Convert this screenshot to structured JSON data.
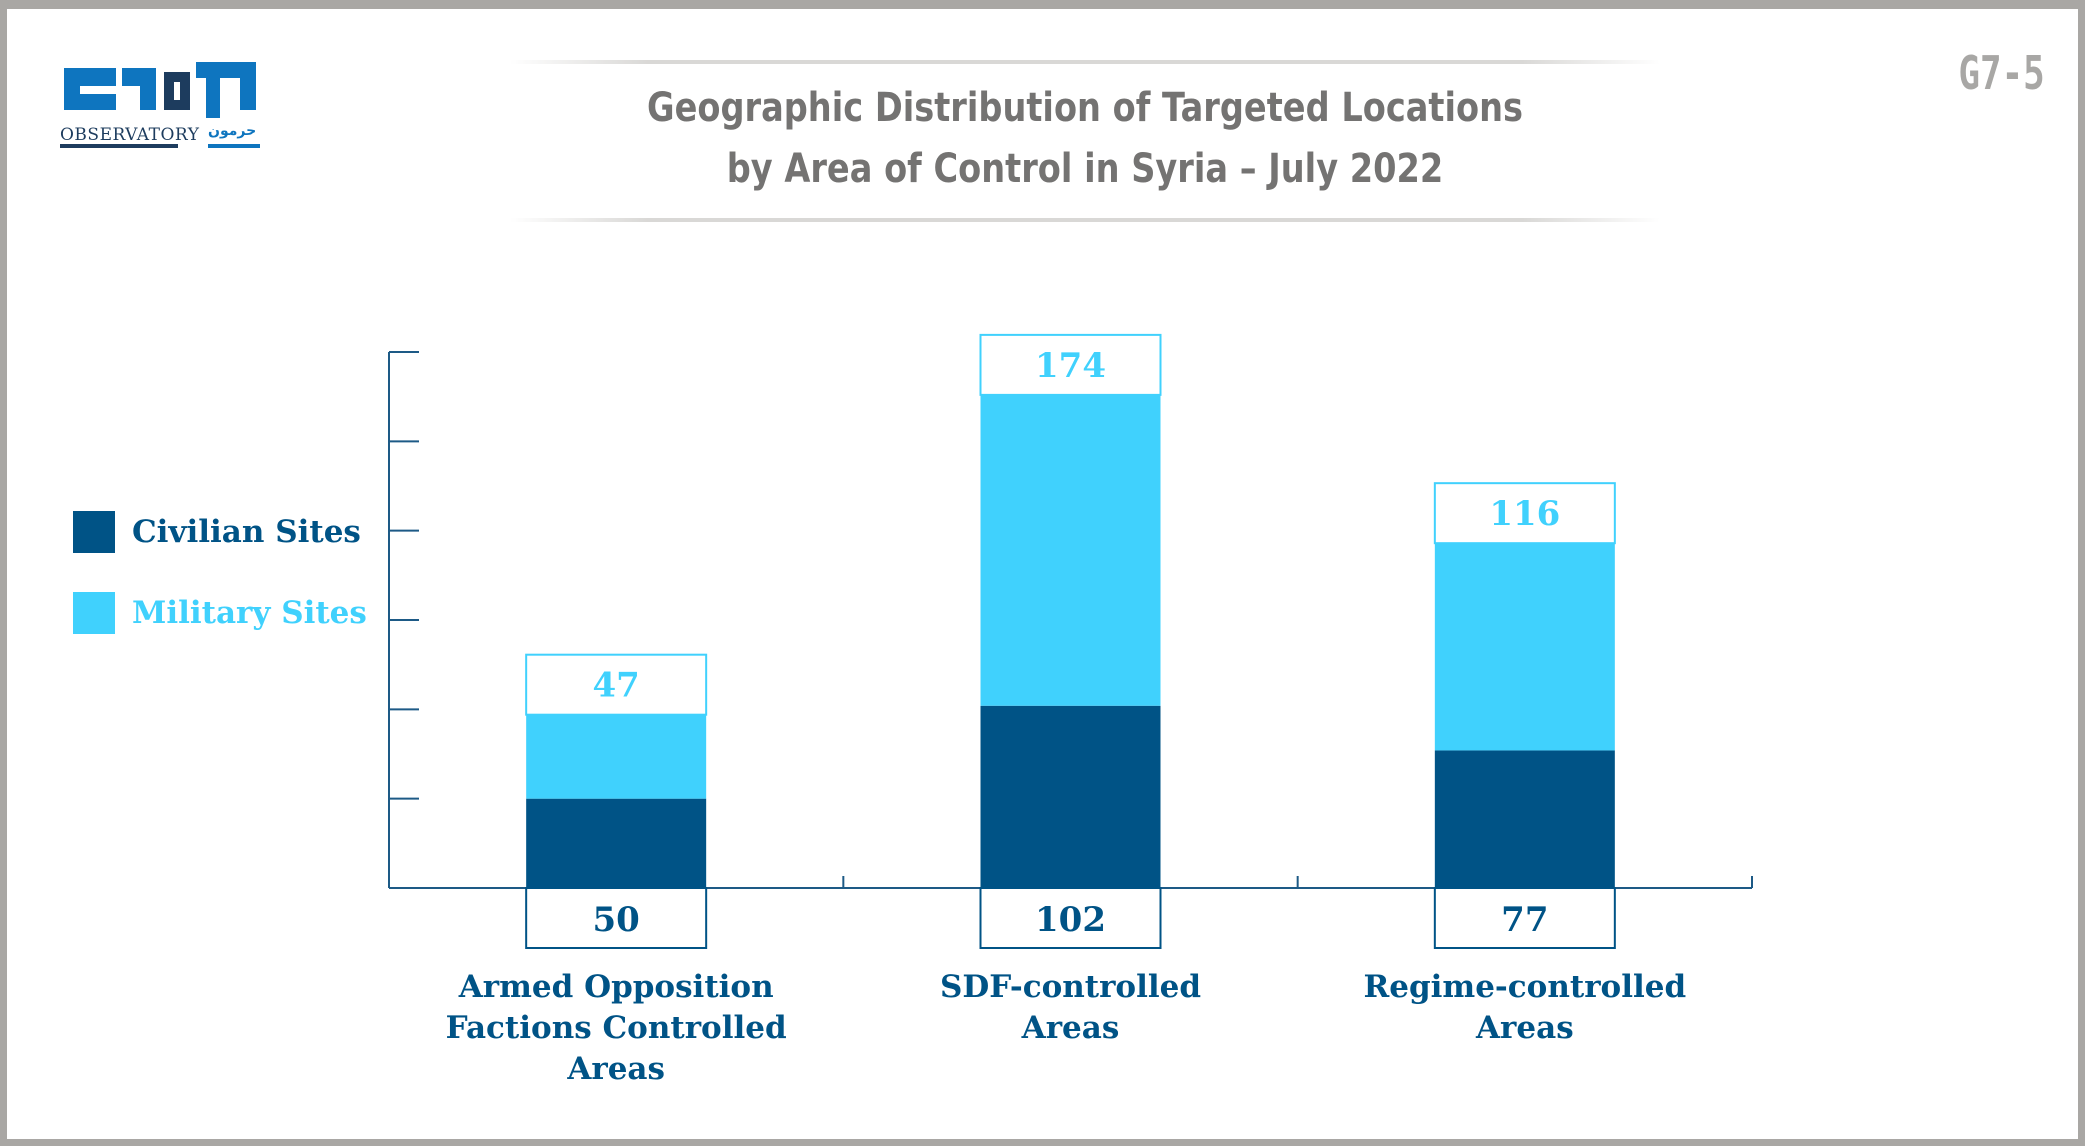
{
  "header": {
    "title_line1": "Geographic Distribution of Targeted Locations",
    "title_line2": "by Area of Control in Syria – July 2022",
    "code": "G7-5"
  },
  "logo": {
    "arabic_mark": "مرصد",
    "english": "OBSERVATORY",
    "arabic_sub": "حرمون"
  },
  "colors": {
    "civilian": "#005386",
    "military": "#40d1fd",
    "axis": "#1d5a86",
    "title": "#747372",
    "frame": "#a9a7a4"
  },
  "chart_data": {
    "type": "bar",
    "stacked": true,
    "categories": [
      [
        "Armed Opposition",
        "Factions Controlled",
        "Areas"
      ],
      [
        "SDF-controlled",
        "Areas"
      ],
      [
        "Regime-controlled",
        "Areas"
      ]
    ],
    "series": [
      {
        "name": "Civilian Sites",
        "values": [
          50,
          102,
          77
        ],
        "label_position": "below-axis"
      },
      {
        "name": "Military Sites",
        "values": [
          47,
          174,
          116
        ],
        "label_position": "top"
      }
    ],
    "ylim": [
      0,
      300
    ],
    "legend_position": "left",
    "grid": false
  }
}
